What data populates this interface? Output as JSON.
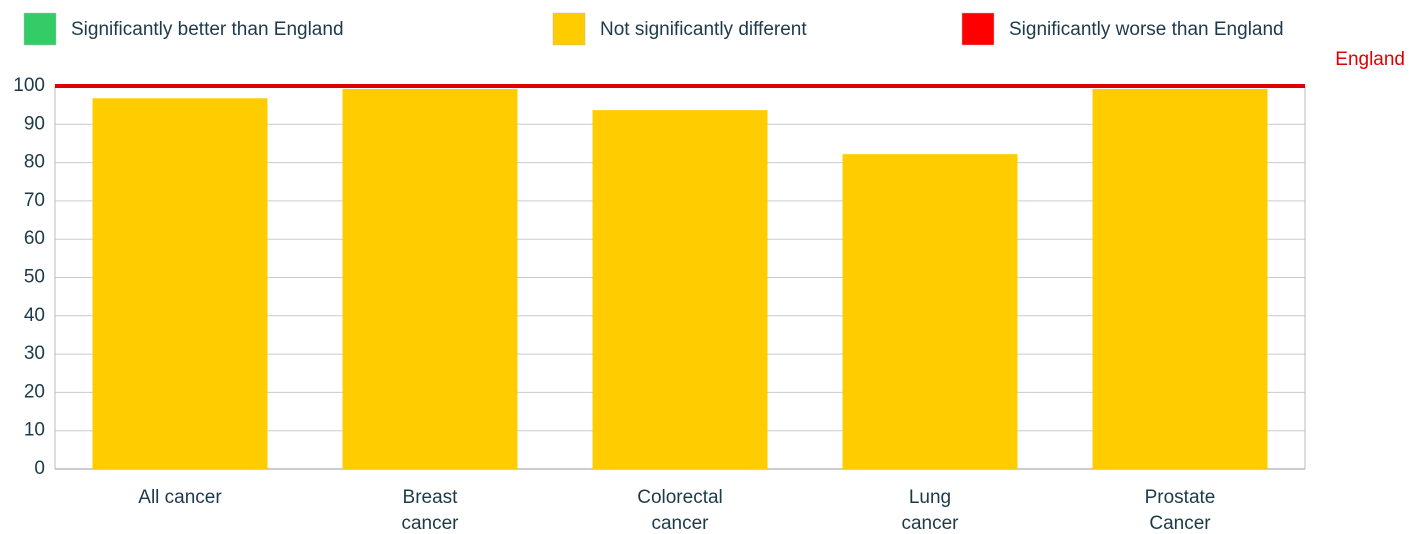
{
  "chart_data": {
    "type": "bar",
    "legend": [
      {
        "name": "Significantly better than England",
        "color": "#33cc66"
      },
      {
        "name": "Not significantly different",
        "color": "#ffcc00"
      },
      {
        "name": "Significantly worse than England",
        "color": "#ff0000"
      }
    ],
    "categories": [
      [
        "All cancer"
      ],
      [
        "Breast",
        "cancer"
      ],
      [
        "Colorectal",
        "cancer"
      ],
      [
        "Lung",
        "cancer"
      ],
      [
        "Prostate",
        "Cancer"
      ]
    ],
    "values": [
      96.8,
      99.2,
      93.7,
      82.2,
      99.2
    ],
    "color": "#ffcc00",
    "reference_line": {
      "label": "England",
      "value": 100,
      "color": "#e00000"
    },
    "ylim": [
      0,
      100
    ],
    "yticks": [
      0,
      10,
      20,
      30,
      40,
      50,
      60,
      70,
      80,
      90,
      100
    ],
    "grid": true
  }
}
